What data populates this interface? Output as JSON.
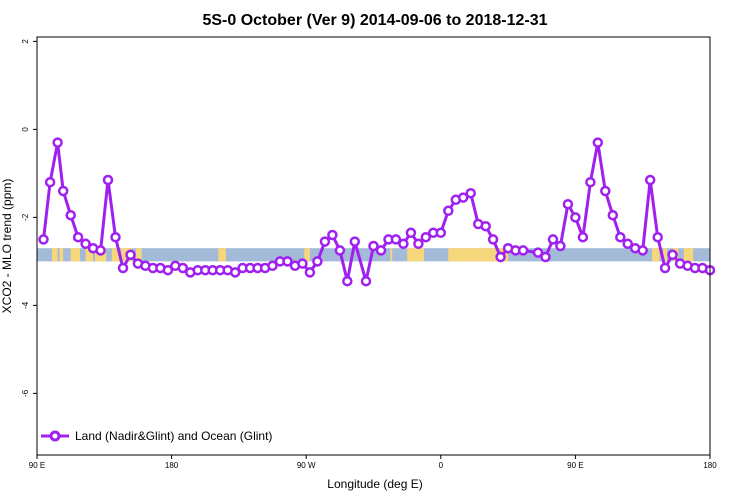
{
  "chart_data": {
    "type": "line",
    "title": "5S-0 October (Ver 9)   2014-09-06 to 2018-12-31",
    "xlabel": "Longitude (deg E)",
    "ylabel": "XCO2 - MLO trend (ppm)",
    "xlim": [
      90,
      450
    ],
    "ylim": [
      -7.4,
      2.1
    ],
    "x_tick_values": [
      90,
      162,
      234,
      306,
      378,
      450
    ],
    "x_tick_labels": [
      "90 E",
      "180",
      "90 W",
      "0",
      "90 E",
      "180"
    ],
    "y_tick_values": [
      2,
      0,
      -2,
      -4,
      -6
    ],
    "y_tick_labels": [
      "2",
      "0",
      "-2",
      "-4",
      "-6"
    ],
    "legend_position": "bottom-left",
    "colors": {
      "series": "#a020f0",
      "ocean": "#a4bad9",
      "land": "#f6d77c"
    },
    "band": {
      "y_range": [
        -3.0,
        -2.7
      ],
      "land_segments_x": [
        [
          98,
          101
        ],
        [
          102,
          104
        ],
        [
          108,
          113
        ],
        [
          116,
          120
        ],
        [
          121,
          127
        ],
        [
          130,
          134
        ],
        [
          135,
          141
        ],
        [
          143,
          146
        ],
        [
          187,
          191
        ],
        [
          233,
          236
        ],
        [
          279,
          280
        ],
        [
          288,
          297
        ],
        [
          310,
          342
        ],
        [
          419,
          423
        ],
        [
          425,
          427
        ],
        [
          430,
          433
        ],
        [
          436,
          441
        ]
      ]
    },
    "series": [
      {
        "name": "Land (Nadir&Glint) and Ocean (Glint)",
        "x": [
          93.5,
          97,
          101,
          104,
          108,
          112,
          116,
          120,
          124,
          128,
          132,
          136,
          140,
          144,
          148,
          152,
          156,
          160,
          164,
          168,
          172,
          176,
          180,
          184,
          188,
          192,
          196,
          200,
          204,
          208,
          212,
          216,
          220,
          224,
          228,
          232,
          236,
          240,
          244,
          248,
          252,
          256,
          260,
          266,
          270,
          274,
          278,
          282,
          286,
          290,
          294,
          298,
          302,
          306,
          310,
          314,
          318,
          322,
          326,
          330,
          334,
          338,
          342,
          346,
          350,
          358,
          362,
          366,
          370,
          374,
          378,
          382,
          386,
          390,
          394,
          398,
          402,
          406,
          410,
          414,
          418,
          422,
          426,
          430,
          434,
          438,
          442,
          446,
          450
        ],
        "y": [
          -2.5,
          -1.2,
          -0.3,
          -1.4,
          -1.95,
          -2.45,
          -2.6,
          -2.7,
          -2.75,
          -1.15,
          -2.45,
          -3.15,
          -2.85,
          -3.05,
          -3.1,
          -3.15,
          -3.15,
          -3.2,
          -3.1,
          -3.15,
          -3.25,
          -3.2,
          -3.2,
          -3.2,
          -3.2,
          -3.2,
          -3.25,
          -3.15,
          -3.15,
          -3.15,
          -3.15,
          -3.1,
          -3.0,
          -3.0,
          -3.1,
          -3.05,
          -3.25,
          -3.0,
          -2.55,
          -2.4,
          -2.75,
          -3.45,
          -2.55,
          -3.45,
          -2.65,
          -2.75,
          -2.5,
          -2.5,
          -2.6,
          -2.35,
          -2.6,
          -2.45,
          -2.35,
          -2.35,
          -1.85,
          -1.6,
          -1.55,
          -1.45,
          -2.15,
          -2.2,
          -2.5,
          -2.9,
          -2.7,
          -2.75,
          -2.75,
          -2.8,
          -2.9,
          -2.5,
          -2.65,
          -1.7,
          -2.0,
          -2.45,
          -1.2,
          -0.3,
          -1.4,
          -1.95,
          -2.45,
          -2.6,
          -2.7,
          -2.75,
          -1.15,
          -2.45,
          -3.15,
          -2.85,
          -3.05,
          -3.1,
          -3.15,
          -3.15,
          -3.2
        ]
      }
    ]
  }
}
